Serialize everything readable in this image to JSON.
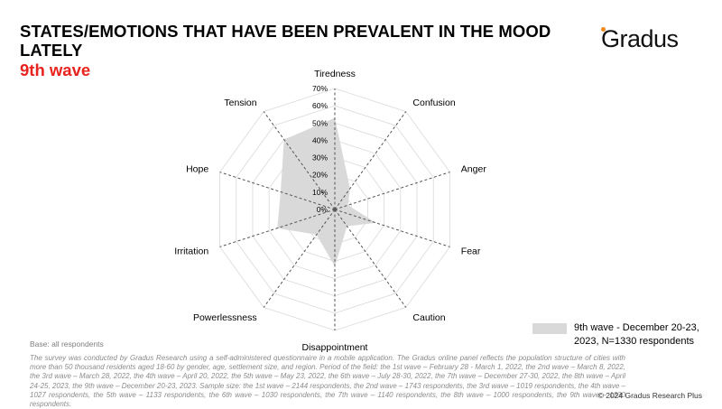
{
  "header": {
    "title": "STATES/EMOTIONS THAT HAVE BEEN PREVALENT IN THE MOOD LATELY",
    "subtitle": "9th wave"
  },
  "logo": {
    "text": "Gradus",
    "accent_color": "#f08a1c"
  },
  "chart_data": {
    "type": "radar",
    "categories": [
      "Tiredness",
      "Confusion",
      "Anger",
      "Fear",
      "Caution",
      "Disappointment",
      "Powerlessness",
      "Irritation",
      "Hope",
      "Tension"
    ],
    "series": [
      {
        "name": "9th wave - December 20-23, 2023, N=1330 respondents",
        "values": [
          53,
          15,
          8,
          25,
          12,
          33,
          18,
          35,
          33,
          50
        ],
        "color": "#d9d9d9"
      }
    ],
    "ticks": [
      "0%",
      "10%",
      "20%",
      "30%",
      "40%",
      "50%",
      "60%",
      "70%"
    ],
    "rmax": 70,
    "legend_position": "bottom-right"
  },
  "footer": {
    "base": "Base: all respondents",
    "note": "The survey was conducted by Gradus Research using a self-administered questionnaire in a mobile application. The Gradus online panel reflects the population structure of cities with more than 50 thousand residents aged 18-60 by gender, age, settlement size, and region. Period of the field: the 1st wave – February 28 - March 1, 2022, the 2nd wave – March 8, 2022, the 3rd wave – March 28, 2022, the 4th wave – April 20, 2022, the 5th wave – May 23, 2022, the 6th wave – July 28-30, 2022, the 7th wave – December 27-30, 2022, the 8th wave – April 24-25, 2023, the 9th wave – December 20-23, 2023. Sample size: the 1st wave – 2144 respondents, the 2nd wave – 1743 respondents, the 3rd wave – 1019 respondents, the 4th wave – 1027 respondents, the 5th wave – 1133 respondents, the 6th wave – 1030 respondents, the 7th wave – 1140 respondents, the 8th wave – 1000 respondents, the 9th wave – 1330 respondents.",
    "copyright": "© 2024 Gradus Research Plus"
  }
}
